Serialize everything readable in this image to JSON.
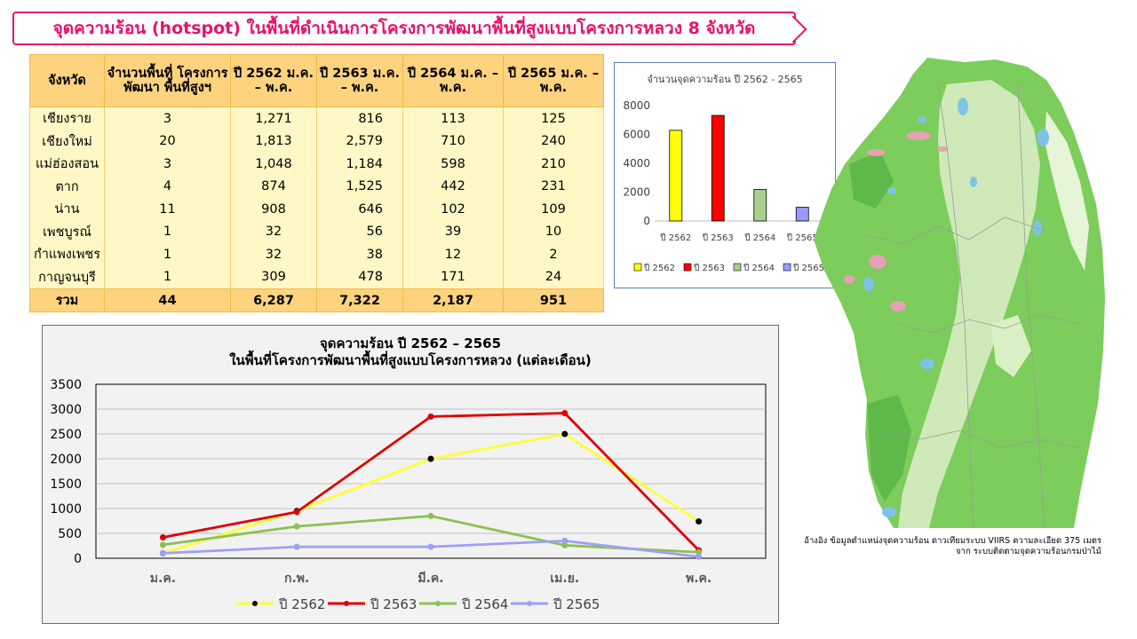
{
  "title": "จุดความร้อน (hotspot) ในพื้นที่ดำเนินการโครงการพัฒนาพื้นที่สูงแบบโครงการหลวง 8 จังหวัด",
  "table": {
    "headers": [
      "จังหวัด",
      "จำนวนพื้นที่ โครงการพัฒนา พื้นที่สูงฯ",
      "ปี 2562 ม.ค. – พ.ค.",
      "ปี 2563 ม.ค. – พ.ค.",
      "ปี 2564 ม.ค. – พ.ค.",
      "ปี 2565 ม.ค. – พ.ค."
    ],
    "rows": [
      [
        "เชียงราย",
        "3",
        "1,271",
        "816",
        "113",
        "125"
      ],
      [
        "เชียงใหม่",
        "20",
        "1,813",
        "2,579",
        "710",
        "240"
      ],
      [
        "แม่ฮ่องสอน",
        "3",
        "1,048",
        "1,184",
        "598",
        "210"
      ],
      [
        "ตาก",
        "4",
        "874",
        "1,525",
        "442",
        "231"
      ],
      [
        "น่าน",
        "11",
        "908",
        "646",
        "102",
        "109"
      ],
      [
        "เพชบูรณ์",
        "1",
        "32",
        "56",
        "39",
        "10"
      ],
      [
        "กำแพงเพชร",
        "1",
        "32",
        "38",
        "12",
        "2"
      ],
      [
        "กาญจนบุรี",
        "1",
        "309",
        "478",
        "171",
        "24"
      ]
    ],
    "total": [
      "รวม",
      "44",
      "6,287",
      "7,322",
      "2,187",
      "951"
    ]
  },
  "chart_data": [
    {
      "type": "bar",
      "title": "จำนวนจุดความร้อน ปี 2562 - 2565",
      "categories": [
        "ปี 2562",
        "ปี 2563",
        "ปี 2564",
        "ปี 2565"
      ],
      "values": [
        6287,
        7322,
        2187,
        951
      ],
      "colors": [
        "#ffff00",
        "#ff0000",
        "#a9d08e",
        "#9999ff"
      ],
      "ylim": [
        0,
        8000
      ],
      "yticks": [
        0,
        2000,
        4000,
        6000,
        8000
      ],
      "legend": [
        "ปี 2562",
        "ปี 2563",
        "ปี 2564",
        "ปี 2565"
      ],
      "legend_position": "bottom",
      "grid": false
    },
    {
      "type": "line",
      "title": "จุดความร้อน ปี 2562 – 2565",
      "subtitle": "ในพื้นที่โครงการพัฒนาพื้นที่สูงแบบโครงการหลวง (แต่ละเดือน)",
      "categories": [
        "ม.ค.",
        "ก.พ.",
        "มี.ค.",
        "เม.ย.",
        "พ.ค."
      ],
      "series": [
        {
          "name": "ปี 2562",
          "color": "#ffff33",
          "values": [
            100,
            950,
            2000,
            2500,
            740
          ]
        },
        {
          "name": "ปี 2563",
          "color": "#e00000",
          "values": [
            420,
            930,
            2850,
            2920,
            160
          ]
        },
        {
          "name": "ปี 2564",
          "color": "#8cc152",
          "values": [
            270,
            640,
            850,
            260,
            120
          ]
        },
        {
          "name": "ปี 2565",
          "color": "#9f9ff5",
          "values": [
            100,
            230,
            230,
            350,
            30
          ]
        }
      ],
      "ylim": [
        0,
        3500
      ],
      "yticks": [
        0,
        500,
        1000,
        1500,
        2000,
        2500,
        3000,
        3500
      ],
      "legend_position": "bottom",
      "grid": true
    }
  ],
  "source_note_line1": "อ้างอิง ข้อมูลตำแหน่งจุดความร้อน ดาวเทียมระบบ VIIRS ความละเอียด 375 เมตร",
  "source_note_line2": "จาก ระบบติดตามจุดความร้อนกรมป่าไม้",
  "map": {
    "icon": "northern-thailand-landcover-map"
  }
}
